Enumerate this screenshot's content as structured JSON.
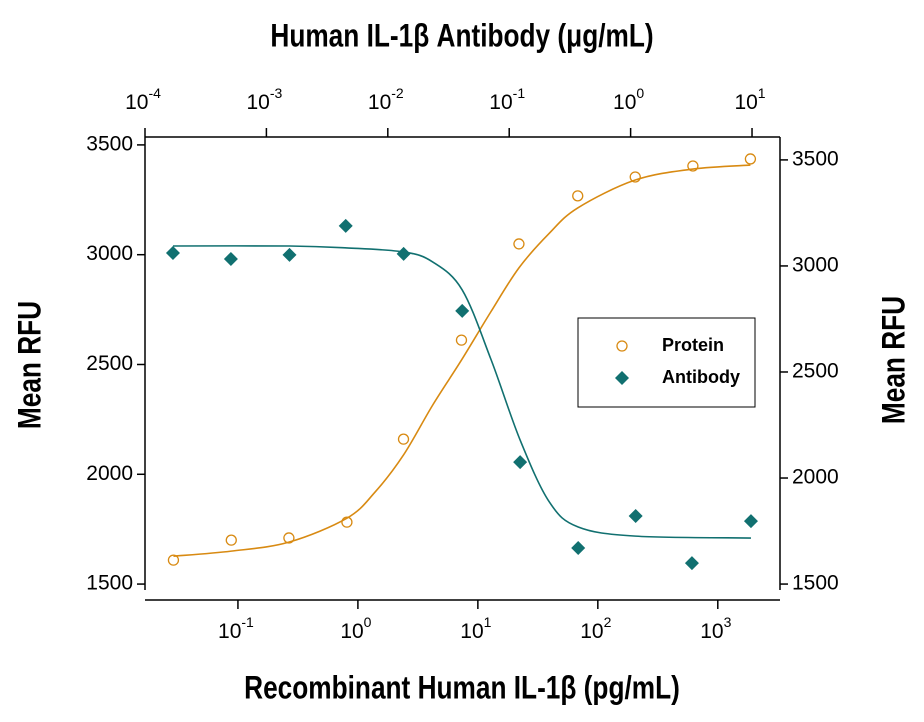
{
  "chart_data": {
    "type": "scatter",
    "title": "Human IL-1β Antibody (μg/mL)",
    "x_label": "Recombinant Human IL-1β (pg/mL)",
    "y_label": "Mean RFU",
    "y2_label": "Mean RFU",
    "xscale": "log",
    "xlim": [
      0.0168,
      3300
    ],
    "xticks": [
      {
        "value": 0.1,
        "label": "10-1"
      },
      {
        "value": 1,
        "label": "100"
      },
      {
        "value": 10,
        "label": "101"
      },
      {
        "value": 100,
        "label": "102"
      },
      {
        "value": 1000,
        "label": "103"
      }
    ],
    "x2lim": [
      0.0001,
      17
    ],
    "x2ticks": [
      {
        "value": 0.0001,
        "label": "10-4"
      },
      {
        "value": 0.001,
        "label": "10-3"
      },
      {
        "value": 0.01,
        "label": "10-2"
      },
      {
        "value": 0.1,
        "label": "10-1"
      },
      {
        "value": 1,
        "label": "100"
      },
      {
        "value": 10,
        "label": "101"
      }
    ],
    "ylim": [
      1473,
      3536
    ],
    "yticks": [
      1500,
      2000,
      2500,
      3000,
      3500
    ],
    "y2lim": [
      1472,
      3608
    ],
    "y2ticks": [
      1500,
      2000,
      2500,
      3000,
      3500
    ],
    "legend": "right",
    "series": [
      {
        "name": "Protein",
        "color": "#d88a12",
        "marker": "circle",
        "xaxis": "x",
        "x": [
          0.029,
          0.088,
          0.266,
          0.81,
          2.4,
          7.3,
          22,
          68,
          205,
          620,
          1870
        ],
        "values": [
          1609,
          1700,
          1710,
          1782,
          2160,
          2611,
          3049,
          3268,
          3354,
          3404,
          3436
        ],
        "fit": {
          "x": [
            0.029,
            0.088,
            0.266,
            0.81,
            1.39,
            2.4,
            4.2,
            7.3,
            12.8,
            22,
            39,
            68,
            205,
            620,
            1870
          ],
          "values": [
            1627,
            1650,
            1691,
            1800,
            1919,
            2088,
            2315,
            2520,
            2739,
            2940,
            3095,
            3213,
            3340,
            3390,
            3408
          ]
        }
      },
      {
        "name": "Antibody",
        "color": "#117070",
        "marker": "diamond",
        "xaxis": "x2",
        "axis": "y2",
        "x": [
          0.00017,
          0.00051,
          0.00155,
          0.0045,
          0.0135,
          0.041,
          0.123,
          0.37,
          1.1,
          3.2,
          9.8
        ],
        "values": [
          3061,
          3033,
          3052,
          3189,
          3057,
          2788,
          2075,
          1670,
          1821,
          1599,
          1797
        ],
        "fit": {
          "x": [
            0.00017,
            0.00155,
            0.0046,
            0.0135,
            0.0234,
            0.041,
            0.071,
            0.123,
            0.214,
            0.37,
            1.1,
            9.8
          ],
          "values": [
            3094,
            3094,
            3085,
            3066,
            3019,
            2887,
            2557,
            2179,
            1887,
            1769,
            1726,
            1717
          ]
        }
      }
    ]
  }
}
